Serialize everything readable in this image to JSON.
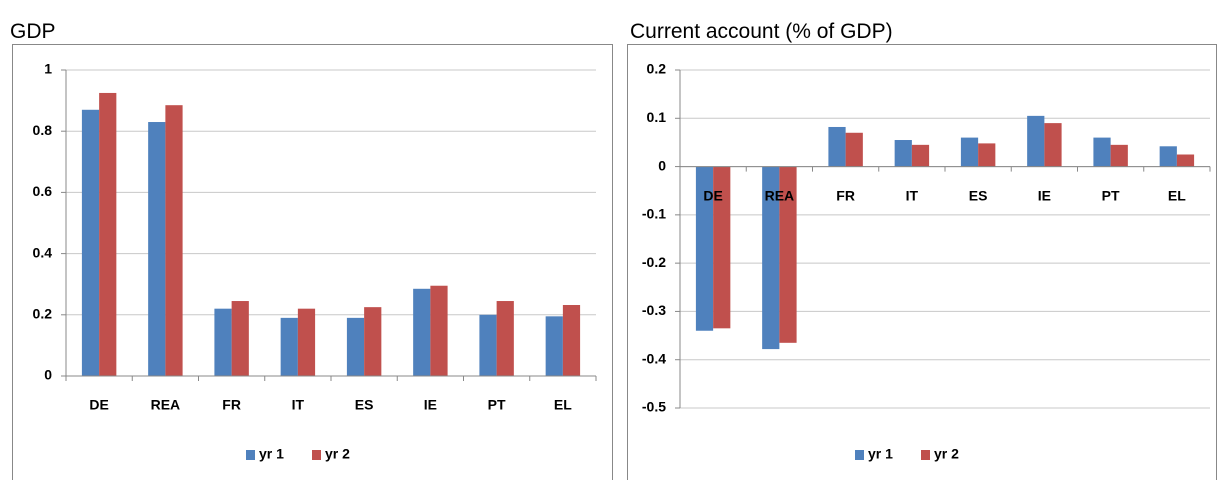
{
  "chart_data": [
    {
      "type": "bar",
      "title": "GDP",
      "categories": [
        "DE",
        "REA",
        "FR",
        "IT",
        "ES",
        "IE",
        "PT",
        "EL"
      ],
      "series": [
        {
          "name": "yr 1",
          "color": "#4f81bd",
          "values": [
            0.87,
            0.83,
            0.22,
            0.19,
            0.19,
            0.285,
            0.2,
            0.195
          ]
        },
        {
          "name": "yr 2",
          "color": "#c0504d",
          "values": [
            0.925,
            0.885,
            0.245,
            0.22,
            0.225,
            0.295,
            0.245,
            0.232
          ]
        }
      ],
      "ylim": [
        0,
        1
      ],
      "yticks": [
        0,
        0.2,
        0.4,
        0.6,
        0.8,
        1
      ],
      "grid": true,
      "legend": "bottom"
    },
    {
      "type": "bar",
      "title": "Current account (% of GDP)",
      "categories": [
        "DE",
        "REA",
        "FR",
        "IT",
        "ES",
        "IE",
        "PT",
        "EL"
      ],
      "series": [
        {
          "name": "yr 1",
          "color": "#4f81bd",
          "values": [
            -0.34,
            -0.378,
            0.082,
            0.055,
            0.06,
            0.105,
            0.06,
            0.042
          ]
        },
        {
          "name": "yr 2",
          "color": "#c0504d",
          "values": [
            -0.335,
            -0.365,
            0.07,
            0.045,
            0.048,
            0.09,
            0.045,
            0.025
          ]
        }
      ],
      "ylim": [
        -0.5,
        0.2
      ],
      "yticks": [
        -0.5,
        -0.4,
        -0.3,
        -0.2,
        -0.1,
        0,
        0.1,
        0.2
      ],
      "grid": true,
      "legend": "bottom"
    }
  ]
}
